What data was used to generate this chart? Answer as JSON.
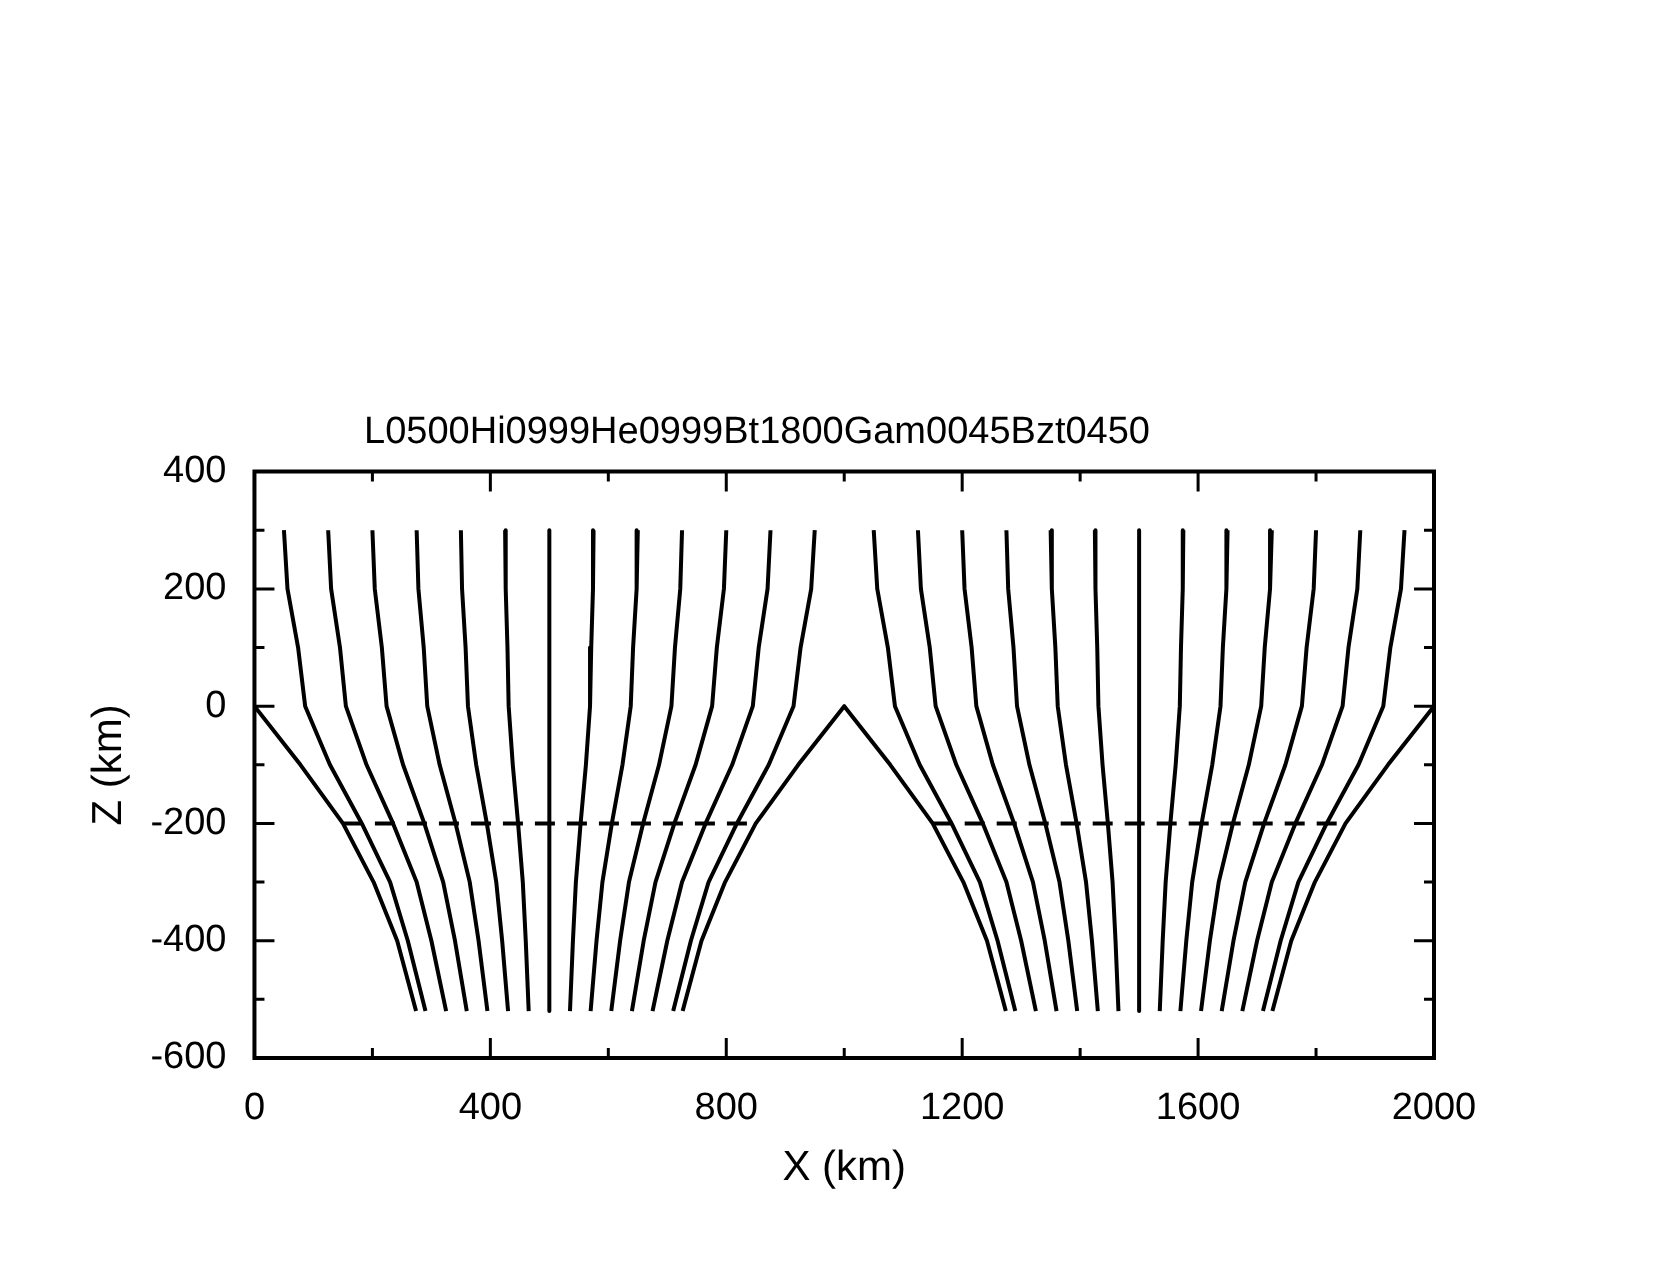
{
  "chart_data": {
    "type": "line",
    "title": "L0500Hi0999He0999Bt1800Gam0045Bzt0450",
    "xlabel": "X (km)",
    "ylabel": "Z (km)",
    "marker": "none",
    "xlim": [
      0,
      2000
    ],
    "ylim": [
      -600,
      400
    ],
    "xticks": [
      0,
      {
        "value": 200,
        "label": null
      },
      400,
      {
        "value": 600,
        "label": null
      },
      800,
      {
        "value": 1000,
        "label": null
      },
      1200,
      {
        "value": 1400,
        "label": null
      },
      1600,
      {
        "value": 1800,
        "label": null
      },
      2000
    ],
    "yticks": [
      -600,
      {
        "value": -500,
        "label": null
      },
      -400,
      {
        "value": -300,
        "label": null
      },
      -200,
      {
        "value": -100,
        "label": null
      },
      0,
      {
        "value": 100,
        "label": null
      },
      200,
      {
        "value": 300,
        "label": null
      },
      400
    ],
    "series": [
      {
        "color": "#000000",
        "x": [
          50,
          56,
          74,
          86,
          128,
          182,
          230,
          260,
          290
        ],
        "values": [
          300,
          200,
          100,
          0,
          -100,
          -200,
          -300,
          -400,
          -520
        ]
      },
      {
        "color": "#000000",
        "x": [
          125,
          130,
          145,
          155,
          190,
          235,
          275,
          300,
          325
        ],
        "values": [
          300,
          200,
          100,
          0,
          -100,
          -200,
          -300,
          -400,
          -520
        ]
      },
      {
        "color": "#000000",
        "x": [
          200,
          204,
          216,
          224,
          252,
          288,
          320,
          340,
          360
        ],
        "values": [
          300,
          200,
          100,
          0,
          -100,
          -200,
          -300,
          -400,
          -520
        ]
      },
      {
        "color": "#000000",
        "x": [
          275,
          278,
          287,
          293,
          314,
          341,
          365,
          380,
          395
        ],
        "values": [
          300,
          200,
          100,
          0,
          -100,
          -200,
          -300,
          -400,
          -520
        ]
      },
      {
        "color": "#000000",
        "x": [
          350,
          352,
          358,
          362,
          376,
          394,
          410,
          420,
          430
        ],
        "values": [
          300,
          200,
          100,
          0,
          -100,
          -200,
          -300,
          -400,
          -520
        ]
      },
      {
        "color": "#000000",
        "x": [
          425,
          426,
          429,
          431,
          438,
          447,
          455,
          460,
          465
        ],
        "values": [
          300,
          200,
          100,
          0,
          -100,
          -200,
          -300,
          -400,
          -520
        ]
      },
      {
        "color": "#000000",
        "x": [
          500,
          500,
          500,
          500,
          500,
          500,
          500,
          500,
          500
        ],
        "values": [
          300,
          200,
          100,
          0,
          -100,
          -200,
          -300,
          -400,
          -520
        ]
      },
      {
        "color": "#000000",
        "x": [
          575,
          574,
          571,
          569,
          562,
          553,
          545,
          540,
          535
        ],
        "values": [
          300,
          200,
          100,
          0,
          -100,
          -200,
          -300,
          -400,
          -520
        ]
      },
      {
        "color": "#000000",
        "x": [
          650,
          648,
          642,
          638,
          624,
          606,
          590,
          580,
          570
        ],
        "values": [
          300,
          200,
          100,
          0,
          -100,
          -200,
          -300,
          -400,
          -520
        ]
      },
      {
        "color": "#000000",
        "x": [
          725,
          722,
          713,
          707,
          686,
          659,
          635,
          620,
          605
        ],
        "values": [
          300,
          200,
          100,
          0,
          -100,
          -200,
          -300,
          -400,
          -520
        ]
      },
      {
        "color": "#000000",
        "x": [
          800,
          796,
          784,
          776,
          748,
          712,
          680,
          660,
          640
        ],
        "values": [
          300,
          200,
          100,
          0,
          -100,
          -200,
          -300,
          -400,
          -520
        ]
      },
      {
        "color": "#000000",
        "x": [
          875,
          870,
          855,
          845,
          810,
          765,
          725,
          700,
          675
        ],
        "values": [
          300,
          200,
          100,
          0,
          -100,
          -200,
          -300,
          -400,
          -520
        ]
      },
      {
        "color": "#000000",
        "x": [
          950,
          944,
          926,
          914,
          872,
          818,
          770,
          740,
          710
        ],
        "values": [
          300,
          200,
          100,
          0,
          -100,
          -200,
          -300,
          -400,
          -520
        ]
      },
      {
        "color": "#000000",
        "x": [
          1050,
          1056,
          1074,
          1086,
          1128,
          1182,
          1230,
          1260,
          1290
        ],
        "values": [
          300,
          200,
          100,
          0,
          -100,
          -200,
          -300,
          -400,
          -520
        ]
      },
      {
        "color": "#000000",
        "x": [
          1125,
          1130,
          1145,
          1155,
          1190,
          1235,
          1275,
          1300,
          1325
        ],
        "values": [
          300,
          200,
          100,
          0,
          -100,
          -200,
          -300,
          -400,
          -520
        ]
      },
      {
        "color": "#000000",
        "x": [
          1200,
          1204,
          1216,
          1224,
          1252,
          1288,
          1320,
          1340,
          1360
        ],
        "values": [
          300,
          200,
          100,
          0,
          -100,
          -200,
          -300,
          -400,
          -520
        ]
      },
      {
        "color": "#000000",
        "x": [
          1275,
          1278,
          1287,
          1293,
          1314,
          1341,
          1365,
          1380,
          1395
        ],
        "values": [
          300,
          200,
          100,
          0,
          -100,
          -200,
          -300,
          -400,
          -520
        ]
      },
      {
        "color": "#000000",
        "x": [
          1350,
          1352,
          1358,
          1362,
          1376,
          1394,
          1410,
          1420,
          1430
        ],
        "values": [
          300,
          200,
          100,
          0,
          -100,
          -200,
          -300,
          -400,
          -520
        ]
      },
      {
        "color": "#000000",
        "x": [
          1425,
          1426,
          1429,
          1431,
          1438,
          1447,
          1455,
          1460,
          1465
        ],
        "values": [
          300,
          200,
          100,
          0,
          -100,
          -200,
          -300,
          -400,
          -520
        ]
      },
      {
        "color": "#000000",
        "x": [
          1500,
          1500,
          1500,
          1500,
          1500,
          1500,
          1500,
          1500,
          1500
        ],
        "values": [
          300,
          200,
          100,
          0,
          -100,
          -200,
          -300,
          -400,
          -520
        ]
      },
      {
        "color": "#000000",
        "x": [
          1575,
          1574,
          1571,
          1569,
          1562,
          1553,
          1545,
          1540,
          1535
        ],
        "values": [
          300,
          200,
          100,
          0,
          -100,
          -200,
          -300,
          -400,
          -520
        ]
      },
      {
        "color": "#000000",
        "x": [
          1650,
          1648,
          1642,
          1638,
          1624,
          1606,
          1590,
          1580,
          1570
        ],
        "values": [
          300,
          200,
          100,
          0,
          -100,
          -200,
          -300,
          -400,
          -520
        ]
      },
      {
        "color": "#000000",
        "x": [
          1725,
          1722,
          1713,
          1707,
          1686,
          1659,
          1635,
          1620,
          1605
        ],
        "values": [
          300,
          200,
          100,
          0,
          -100,
          -200,
          -300,
          -400,
          -520
        ]
      },
      {
        "color": "#000000",
        "x": [
          1800,
          1796,
          1784,
          1776,
          1748,
          1712,
          1680,
          1660,
          1640
        ],
        "values": [
          300,
          200,
          100,
          0,
          -100,
          -200,
          -300,
          -400,
          -520
        ]
      },
      {
        "color": "#000000",
        "x": [
          1875,
          1870,
          1855,
          1845,
          1810,
          1765,
          1725,
          1700,
          1675
        ],
        "values": [
          300,
          200,
          100,
          0,
          -100,
          -200,
          -300,
          -400,
          -520
        ]
      },
      {
        "color": "#000000",
        "x": [
          1950,
          1944,
          1926,
          1914,
          1872,
          1818,
          1770,
          1740,
          1710
        ],
        "values": [
          300,
          200,
          100,
          0,
          -100,
          -200,
          -300,
          -400,
          -520
        ]
      },
      {
        "color": "#000000",
        "x": [
          0,
          78,
          150,
          202,
          242,
          274
        ],
        "values": [
          0,
          -100,
          -200,
          -300,
          -400,
          -520
        ]
      },
      {
        "color": "#000000",
        "x": [
          726,
          758,
          798,
          850,
          922,
          1000,
          1078,
          1150,
          1202,
          1242,
          1274
        ],
        "values": [
          -520,
          -400,
          -300,
          -200,
          -100,
          0,
          -100,
          -200,
          -300,
          -400,
          -520
        ]
      },
      {
        "color": "#000000",
        "x": [
          2000,
          1922,
          1850,
          1798,
          1758,
          1726
        ],
        "values": [
          0,
          -100,
          -200,
          -300,
          -400,
          -520
        ]
      },
      {
        "color": "#000000",
        "line_style": "dashed",
        "x": [
          150,
          850
        ],
        "values": [
          -200,
          -200
        ]
      },
      {
        "color": "#000000",
        "line_style": "dashed",
        "x": [
          1150,
          1850
        ],
        "values": [
          -200,
          -200
        ]
      }
    ]
  }
}
